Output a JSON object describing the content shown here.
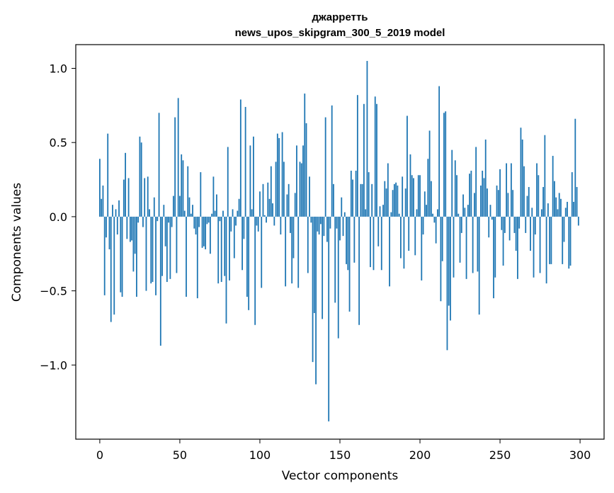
{
  "chart_data": {
    "type": "bar",
    "title": "джарретть",
    "subtitle": "news_upos_skipgram_300_5_2019 model",
    "xlabel": "Vector components",
    "ylabel": "Components values",
    "xlim": [
      -15,
      315
    ],
    "ylim": [
      -1.5,
      1.16
    ],
    "xticks": [
      0,
      50,
      100,
      150,
      200,
      250,
      300
    ],
    "xtick_labels": [
      "0",
      "50",
      "100",
      "150",
      "200",
      "250",
      "300"
    ],
    "yticks": [
      -1.0,
      -0.5,
      0.0,
      0.5,
      1.0
    ],
    "ytick_labels": [
      "−1.0",
      "−0.5",
      "0.0",
      "0.5",
      "1.0"
    ],
    "bar_color": "#1f77b4",
    "x": "0..299",
    "values": [
      0.39,
      0.12,
      0.21,
      -0.53,
      -0.14,
      0.56,
      -0.22,
      -0.71,
      0.08,
      -0.66,
      0.05,
      -0.12,
      0.11,
      -0.51,
      -0.54,
      0.25,
      0.43,
      -0.15,
      0.26,
      -0.17,
      -0.16,
      -0.37,
      -0.25,
      -0.54,
      -0.04,
      0.54,
      0.5,
      -0.07,
      0.26,
      -0.5,
      0.27,
      0.05,
      -0.45,
      -0.44,
      0.13,
      -0.53,
      -0.03,
      0.7,
      -0.87,
      -0.4,
      0.08,
      -0.2,
      -0.44,
      -0.04,
      -0.42,
      -0.07,
      0.14,
      0.67,
      -0.38,
      0.8,
      0.14,
      0.42,
      0.38,
      0.04,
      -0.54,
      0.34,
      0.13,
      0.02,
      0.08,
      -0.08,
      -0.12,
      -0.55,
      -0.07,
      0.3,
      -0.21,
      -0.2,
      -0.22,
      -0.05,
      -0.04,
      -0.25,
      0.02,
      0.27,
      0.04,
      0.15,
      -0.45,
      -0.03,
      -0.44,
      0.04,
      -0.4,
      -0.72,
      0.47,
      -0.43,
      -0.1,
      0.05,
      -0.28,
      -0.06,
      0.04,
      0.12,
      0.79,
      -0.36,
      -0.15,
      0.74,
      -0.54,
      -0.63,
      0.48,
      0.05,
      0.54,
      -0.73,
      -0.06,
      -0.1,
      0.17,
      -0.48,
      0.22,
      0.01,
      -0.04,
      0.23,
      0.12,
      0.34,
      0.09,
      -0.06,
      0.37,
      0.56,
      0.53,
      -0.12,
      0.57,
      0.37,
      -0.47,
      0.15,
      0.22,
      -0.11,
      -0.45,
      -0.28,
      0.16,
      0.48,
      -0.48,
      0.37,
      0.36,
      0.48,
      0.83,
      0.63,
      -0.38,
      0.27,
      -0.04,
      -0.98,
      -0.65,
      -1.13,
      -0.1,
      -0.12,
      -0.05,
      -0.69,
      -0.13,
      0.67,
      -0.17,
      -1.38,
      -0.08,
      0.75,
      0.22,
      -0.58,
      -0.08,
      -0.82,
      -0.16,
      0.13,
      -0.13,
      0.03,
      -0.32,
      -0.36,
      -0.64,
      0.31,
      0.25,
      -0.31,
      0.31,
      0.82,
      -0.73,
      0.22,
      0.22,
      0.76,
      0.05,
      1.05,
      0.3,
      -0.34,
      0.22,
      -0.36,
      0.81,
      0.76,
      -0.2,
      0.07,
      -0.36,
      0.08,
      0.24,
      0.19,
      0.36,
      -0.47,
      0.03,
      0.18,
      0.22,
      0.23,
      0.21,
      0.02,
      -0.28,
      0.27,
      -0.35,
      0.19,
      0.68,
      -0.23,
      0.42,
      0.28,
      0.26,
      -0.26,
      0.05,
      0.28,
      0.28,
      -0.43,
      -0.12,
      0.17,
      0.08,
      0.39,
      0.58,
      0.24,
      0.02,
      -0.04,
      -0.18,
      0.05,
      0.88,
      -0.57,
      -0.3,
      0.7,
      0.71,
      -0.9,
      -0.6,
      -0.7,
      0.45,
      -0.41,
      0.38,
      0.28,
      0.02,
      -0.31,
      -0.11,
      0.15,
      0.06,
      -0.42,
      0.08,
      0.29,
      0.31,
      -0.38,
      0.16,
      0.47,
      -0.37,
      -0.66,
      0.21,
      0.31,
      0.26,
      0.52,
      0.19,
      -0.14,
      0.08,
      -0.02,
      -0.55,
      -0.41,
      0.21,
      0.18,
      0.32,
      -0.09,
      -0.33,
      -0.11,
      0.36,
      0.16,
      -0.16,
      0.36,
      0.18,
      -0.11,
      -0.23,
      -0.42,
      -0.08,
      0.6,
      0.52,
      0.34,
      -0.11,
      0.14,
      0.2,
      -0.23,
      0.06,
      -0.41,
      -0.12,
      0.36,
      0.28,
      -0.38,
      0.05,
      0.2,
      0.55,
      -0.45,
      0.09,
      -0.32,
      -0.32,
      0.41,
      0.24,
      0.13,
      0.05,
      0.16,
      0.12,
      -0.32,
      -0.17,
      0.06,
      0.1,
      -0.35,
      -0.33,
      0.3,
      0.1,
      0.66,
      0.2,
      -0.06
    ]
  }
}
